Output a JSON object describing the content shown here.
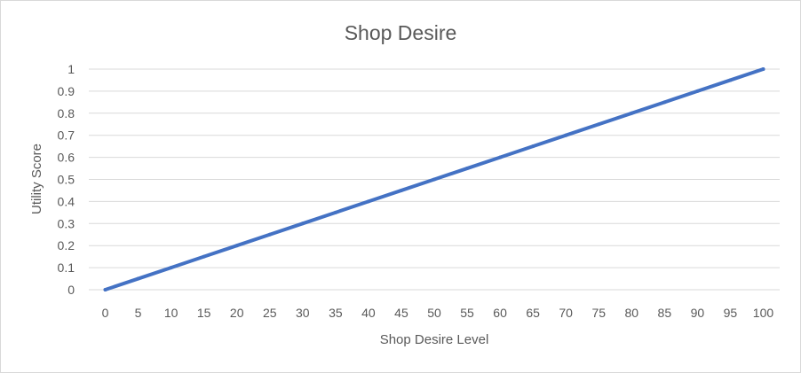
{
  "chart_data": {
    "type": "line",
    "title": "Shop Desire",
    "xlabel": "Shop Desire Level",
    "ylabel": "Utility Score",
    "categories": [
      "0",
      "5",
      "10",
      "15",
      "20",
      "25",
      "30",
      "35",
      "40",
      "45",
      "50",
      "55",
      "60",
      "65",
      "70",
      "75",
      "80",
      "85",
      "90",
      "95",
      "100"
    ],
    "series": [
      {
        "name": "Utility Score",
        "values": [
          0,
          0.05,
          0.1,
          0.15,
          0.2,
          0.25,
          0.3,
          0.35,
          0.4,
          0.45,
          0.5,
          0.55,
          0.6,
          0.65,
          0.7,
          0.75,
          0.8,
          0.85,
          0.9,
          0.95,
          1
        ],
        "color": "#4472c4"
      }
    ],
    "ylim": [
      0,
      1
    ],
    "yticks": [
      "0",
      "0.1",
      "0.2",
      "0.3",
      "0.4",
      "0.5",
      "0.6",
      "0.7",
      "0.8",
      "0.9",
      "1"
    ],
    "grid": true,
    "legend": "none"
  }
}
